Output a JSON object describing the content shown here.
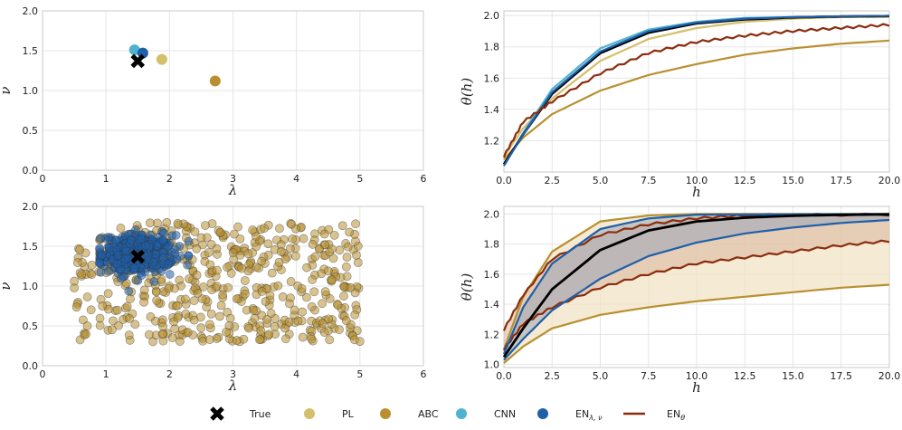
{
  "colors": {
    "True": "#000000",
    "PL": "#d4bf6a",
    "ABC": "#b8902f",
    "CNN": "#4fb2cf",
    "EN_lambda_nu": "#1f5fa8",
    "EN_theta": "#8b2c0d",
    "band_ABC": "#f2e3c6",
    "band_EN_theta": "#d9b49a",
    "band_EN_lambda_nu": "#9aa7b8"
  },
  "legend": {
    "items": [
      {
        "key": "True",
        "label": "True",
        "marker": "cross"
      },
      {
        "key": "PL",
        "label": "PL",
        "marker": "circle"
      },
      {
        "key": "ABC",
        "label": "ABC",
        "marker": "circle"
      },
      {
        "key": "CNN",
        "label": "CNN",
        "marker": "circle"
      },
      {
        "key": "EN_lambda_nu",
        "label": "EN",
        "sub": "λ, ν",
        "marker": "circle"
      },
      {
        "key": "EN_theta",
        "label": "EN",
        "sub": "θ",
        "marker": "line"
      }
    ]
  },
  "chart_data": [
    {
      "id": "top-left",
      "type": "scatter",
      "xlabel": "λ",
      "ylabel": "ν",
      "xlim": [
        0,
        6
      ],
      "ylim": [
        0,
        2
      ],
      "xticks": [
        "0",
        "1",
        "2",
        "3",
        "4",
        "5",
        "6"
      ],
      "yticks": [
        "0.0",
        "0.5",
        "1.0",
        "1.5",
        "2.0"
      ],
      "points": [
        {
          "series": "CNN",
          "x": 1.45,
          "y": 1.51
        },
        {
          "series": "EN_lambda_nu",
          "x": 1.58,
          "y": 1.47
        },
        {
          "series": "PL",
          "x": 1.88,
          "y": 1.39
        },
        {
          "series": "ABC",
          "x": 2.72,
          "y": 1.12
        },
        {
          "series": "True",
          "x": 1.5,
          "y": 1.37
        }
      ]
    },
    {
      "id": "top-right",
      "type": "line",
      "xlabel": "h",
      "ylabel": "θ(h)",
      "xlim": [
        0,
        20
      ],
      "ylim": [
        1.0,
        2.03
      ],
      "xticks": [
        "0.0",
        "2.5",
        "5.0",
        "7.5",
        "10.0",
        "12.5",
        "15.0",
        "17.5",
        "20.0"
      ],
      "yticks": [
        "1.2",
        "1.4",
        "1.6",
        "1.8",
        "2.0"
      ],
      "series": [
        {
          "name": "PL",
          "points": [
            [
              0,
              1.1
            ],
            [
              1,
              1.28
            ],
            [
              2.5,
              1.47
            ],
            [
              5,
              1.71
            ],
            [
              7.5,
              1.85
            ],
            [
              10,
              1.92
            ],
            [
              12.5,
              1.96
            ],
            [
              15,
              1.98
            ],
            [
              17.5,
              1.99
            ],
            [
              20,
              1.99
            ]
          ]
        },
        {
          "name": "ABC",
          "points": [
            [
              0,
              1.08
            ],
            [
              1,
              1.22
            ],
            [
              2.5,
              1.37
            ],
            [
              5,
              1.52
            ],
            [
              7.5,
              1.62
            ],
            [
              10,
              1.69
            ],
            [
              12.5,
              1.75
            ],
            [
              15,
              1.79
            ],
            [
              17.5,
              1.82
            ],
            [
              20,
              1.84
            ]
          ]
        },
        {
          "name": "CNN",
          "points": [
            [
              0,
              1.04
            ],
            [
              1,
              1.25
            ],
            [
              2.5,
              1.53
            ],
            [
              5,
              1.79
            ],
            [
              7.5,
              1.91
            ],
            [
              10,
              1.96
            ],
            [
              12.5,
              1.985
            ],
            [
              15,
              1.99
            ],
            [
              17.5,
              1.995
            ],
            [
              20,
              1.998
            ]
          ]
        },
        {
          "name": "True",
          "points": [
            [
              0,
              1.05
            ],
            [
              1,
              1.24
            ],
            [
              2.5,
              1.5
            ],
            [
              5,
              1.76
            ],
            [
              7.5,
              1.89
            ],
            [
              10,
              1.95
            ],
            [
              12.5,
              1.975
            ],
            [
              15,
              1.988
            ],
            [
              17.5,
              1.994
            ],
            [
              20,
              1.997
            ]
          ]
        },
        {
          "name": "EN_lambda_nu",
          "points": [
            [
              0,
              1.04
            ],
            [
              1,
              1.24
            ],
            [
              2.5,
              1.51
            ],
            [
              5,
              1.77
            ],
            [
              7.5,
              1.9
            ],
            [
              10,
              1.955
            ],
            [
              12.5,
              1.98
            ],
            [
              15,
              1.99
            ],
            [
              17.5,
              1.995
            ],
            [
              20,
              1.998
            ]
          ]
        },
        {
          "name": "EN_theta",
          "points": [
            [
              0,
              1.1
            ],
            [
              1,
              1.32
            ],
            [
              2.5,
              1.45
            ],
            [
              5,
              1.63
            ],
            [
              7.5,
              1.76
            ],
            [
              10,
              1.83
            ],
            [
              12.5,
              1.87
            ],
            [
              15,
              1.9
            ],
            [
              17.5,
              1.92
            ],
            [
              20,
              1.94
            ]
          ]
        }
      ]
    },
    {
      "id": "bottom-left",
      "type": "scatter",
      "xlabel": "λ",
      "ylabel": "ν",
      "xlim": [
        0,
        6
      ],
      "ylim": [
        0,
        2
      ],
      "xticks": [
        "0",
        "1",
        "2",
        "3",
        "4",
        "5",
        "6"
      ],
      "yticks": [
        "0.0",
        "0.5",
        "1.0",
        "1.5",
        "2.0"
      ],
      "clouds": [
        {
          "series": "ABC",
          "count": 500,
          "x_range": [
            0.5,
            5.0
          ],
          "y_range": [
            0.3,
            1.8
          ]
        },
        {
          "series": "EN_lambda_nu",
          "count": 400,
          "x_center": 1.5,
          "y_center": 1.4,
          "x_spread": 0.28,
          "y_spread": 0.12,
          "x_range": [
            0.9,
            2.3
          ],
          "y_range": [
            0.9,
            1.75
          ]
        }
      ],
      "true_point": {
        "x": 1.5,
        "y": 1.37
      }
    },
    {
      "id": "bottom-right",
      "type": "area",
      "xlabel": "h",
      "ylabel": "θ(h)",
      "xlim": [
        0,
        20
      ],
      "ylim": [
        0.98,
        2.05
      ],
      "xticks": [
        "0.0",
        "2.5",
        "5.0",
        "7.5",
        "10.0",
        "12.5",
        "15.0",
        "17.5",
        "20.0"
      ],
      "yticks": [
        "1.0",
        "1.2",
        "1.4",
        "1.6",
        "1.8",
        "2.0"
      ],
      "bands": [
        {
          "name": "ABC",
          "upper": [
            [
              0,
              1.1
            ],
            [
              1,
              1.45
            ],
            [
              2.5,
              1.75
            ],
            [
              5,
              1.95
            ],
            [
              7.5,
              1.99
            ],
            [
              10,
              2.0
            ],
            [
              20,
              2.0
            ]
          ],
          "lower": [
            [
              0,
              1.01
            ],
            [
              1,
              1.12
            ],
            [
              2.5,
              1.24
            ],
            [
              5,
              1.33
            ],
            [
              7.5,
              1.38
            ],
            [
              10,
              1.42
            ],
            [
              12.5,
              1.45
            ],
            [
              15,
              1.48
            ],
            [
              17.5,
              1.51
            ],
            [
              20,
              1.53
            ]
          ]
        },
        {
          "name": "EN_theta",
          "upper": [
            [
              0,
              1.23
            ],
            [
              1,
              1.46
            ],
            [
              2.5,
              1.7
            ],
            [
              5,
              1.86
            ],
            [
              7.5,
              1.93
            ],
            [
              10,
              1.97
            ],
            [
              12.5,
              1.99
            ],
            [
              20,
              1.995
            ]
          ],
          "lower": [
            [
              0,
              1.1
            ],
            [
              1,
              1.27
            ],
            [
              2.5,
              1.38
            ],
            [
              5,
              1.51
            ],
            [
              7.5,
              1.6
            ],
            [
              10,
              1.67
            ],
            [
              12.5,
              1.71
            ],
            [
              15,
              1.75
            ],
            [
              17.5,
              1.79
            ],
            [
              20,
              1.82
            ]
          ]
        },
        {
          "name": "EN_lambda_nu",
          "upper": [
            [
              0,
              1.07
            ],
            [
              1,
              1.38
            ],
            [
              2.5,
              1.67
            ],
            [
              5,
              1.9
            ],
            [
              7.5,
              1.97
            ],
            [
              10,
              1.995
            ],
            [
              20,
              2.0
            ]
          ],
          "lower": [
            [
              0,
              1.03
            ],
            [
              1,
              1.17
            ],
            [
              2.5,
              1.36
            ],
            [
              5,
              1.57
            ],
            [
              7.5,
              1.72
            ],
            [
              10,
              1.81
            ],
            [
              12.5,
              1.87
            ],
            [
              15,
              1.91
            ],
            [
              17.5,
              1.94
            ],
            [
              20,
              1.96
            ]
          ]
        }
      ],
      "series": [
        {
          "name": "True",
          "points": [
            [
              0,
              1.05
            ],
            [
              1,
              1.24
            ],
            [
              2.5,
              1.5
            ],
            [
              5,
              1.76
            ],
            [
              7.5,
              1.89
            ],
            [
              10,
              1.95
            ],
            [
              12.5,
              1.975
            ],
            [
              15,
              1.988
            ],
            [
              17.5,
              1.994
            ],
            [
              20,
              1.997
            ]
          ]
        }
      ]
    }
  ]
}
